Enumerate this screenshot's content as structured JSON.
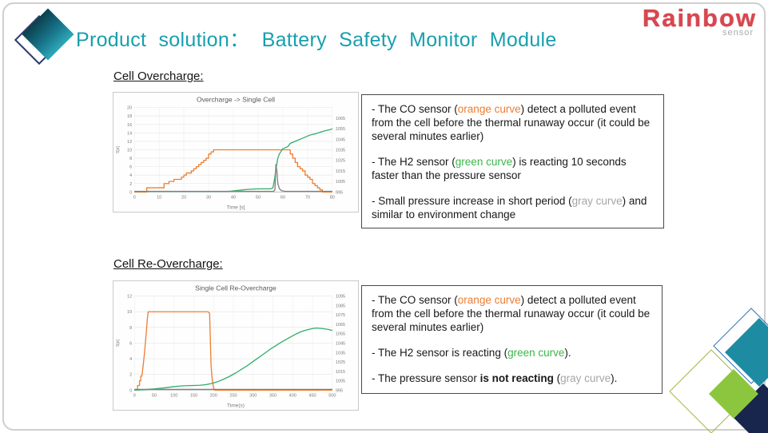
{
  "header": {
    "title": "Product solution： Battery Safety Monitor Module",
    "brand_name": "Rainbow",
    "brand_sub": "sensor"
  },
  "colors": {
    "orange": "#ED7D31",
    "green": "#3CB54A",
    "gray": "#A6A6A6",
    "accent_teal": "#189FAE",
    "brand_red": "#D9464F",
    "curve_green": "#2FAE68",
    "curve_gray": "#7F7F7F",
    "decor_teal": "#1D8CA3",
    "decor_lime": "#8CC63E",
    "decor_navy": "#18254D"
  },
  "sections": [
    {
      "heading": "Cell Overcharge: ",
      "notes": [
        [
          {
            "t": "- The CO sensor ("
          },
          {
            "t": "orange curve",
            "c": "orange"
          },
          {
            "t": ") detect a polluted event from the cell before the thermal runaway occur (it could be several minutes earlier)"
          }
        ],
        [
          {
            "t": "- The H2 sensor ("
          },
          {
            "t": "green curve",
            "c": "green"
          },
          {
            "t": ") is reacting 10 seconds faster than the pressure sensor"
          }
        ],
        [
          {
            "t": "- Small pressure increase in short period ("
          },
          {
            "t": "gray curve",
            "c": "gray"
          },
          {
            "t": ") and similar to environment change"
          }
        ]
      ]
    },
    {
      "heading": "Cell Re-Overcharge: ",
      "notes": [
        [
          {
            "t": "- The CO sensor ("
          },
          {
            "t": "orange curve",
            "c": "orange"
          },
          {
            "t": ") detect a polluted event from the cell before the thermal runaway occur (it could be several minutes earlier)"
          }
        ],
        [
          {
            "t": "- The H2 sensor is reacting ("
          },
          {
            "t": "green curve",
            "c": "green"
          },
          {
            "t": ")."
          }
        ],
        [
          {
            "t": "- The pressure sensor "
          },
          {
            "t": "is not reacting",
            "b": true
          },
          {
            "t": " ("
          },
          {
            "t": "gray curve",
            "c": "gray"
          },
          {
            "t": ")."
          }
        ]
      ]
    }
  ],
  "chart_data": [
    {
      "type": "line",
      "title": "Overcharge -> Single Cell",
      "xlabel": "Time [s]",
      "ylabel": "S[e]",
      "xlim": [
        0,
        80
      ],
      "xticks": [
        0,
        10,
        20,
        30,
        40,
        50,
        60,
        70,
        80
      ],
      "left": {
        "lim": [
          0,
          20
        ],
        "ticks": [
          0,
          2,
          4,
          6,
          8,
          10,
          12,
          14,
          16,
          18,
          20
        ]
      },
      "right": {
        "lim": [
          995,
          1075
        ],
        "ticks": [
          995,
          1005,
          1015,
          1025,
          1035,
          1045,
          1055,
          1065
        ]
      },
      "grid": true,
      "legend": "none",
      "series": [
        {
          "name": "CO sensor",
          "color": "#ED7D31",
          "axis": "left",
          "points": [
            [
              0,
              0
            ],
            [
              5,
              0
            ],
            [
              5,
              1
            ],
            [
              12,
              1
            ],
            [
              12,
              2
            ],
            [
              14,
              2
            ],
            [
              14,
              2.5
            ],
            [
              16,
              2.5
            ],
            [
              16,
              3
            ],
            [
              19,
              3
            ],
            [
              19,
              3.5
            ],
            [
              20,
              3.5
            ],
            [
              20,
              4
            ],
            [
              21,
              4
            ],
            [
              21,
              4.5
            ],
            [
              23,
              4.5
            ],
            [
              23,
              5
            ],
            [
              24,
              5
            ],
            [
              24,
              5.5
            ],
            [
              25,
              5.5
            ],
            [
              25,
              6
            ],
            [
              26,
              6
            ],
            [
              26,
              6.5
            ],
            [
              27,
              6.5
            ],
            [
              27,
              7
            ],
            [
              28,
              7
            ],
            [
              28,
              7.5
            ],
            [
              29,
              7.5
            ],
            [
              29,
              8
            ],
            [
              30,
              8
            ],
            [
              30,
              9
            ],
            [
              31,
              9
            ],
            [
              31,
              9.5
            ],
            [
              32,
              9.5
            ],
            [
              32,
              10
            ],
            [
              63,
              10
            ],
            [
              63,
              9
            ],
            [
              64,
              9
            ],
            [
              64,
              8
            ],
            [
              65,
              8
            ],
            [
              65,
              7
            ],
            [
              66,
              7
            ],
            [
              66,
              6
            ],
            [
              67,
              6
            ],
            [
              67,
              5.5
            ],
            [
              68,
              5.5
            ],
            [
              68,
              5
            ],
            [
              69,
              5
            ],
            [
              69,
              4
            ],
            [
              70,
              4
            ],
            [
              70,
              3.5
            ],
            [
              71,
              3.5
            ],
            [
              71,
              3
            ],
            [
              72,
              3
            ],
            [
              72,
              2
            ],
            [
              73,
              2
            ],
            [
              73,
              1.5
            ],
            [
              74,
              1.5
            ],
            [
              74,
              1
            ],
            [
              75,
              1
            ],
            [
              75,
              0.5
            ],
            [
              76,
              0.5
            ],
            [
              76,
              0
            ],
            [
              80,
              0
            ]
          ]
        },
        {
          "name": "H2 sensor",
          "color": "#2FAE68",
          "axis": "right",
          "points": [
            [
              0,
              995.5
            ],
            [
              38,
              995.5
            ],
            [
              42,
              996.5
            ],
            [
              46,
              997.5
            ],
            [
              50,
              998
            ],
            [
              55,
              998
            ],
            [
              56,
              999
            ],
            [
              56.7,
              1008
            ],
            [
              57.3,
              1018
            ],
            [
              58,
              1027
            ],
            [
              58.6,
              1031
            ],
            [
              59.4,
              1034
            ],
            [
              60,
              1036
            ],
            [
              62,
              1038
            ],
            [
              63,
              1041
            ],
            [
              65,
              1043
            ],
            [
              67,
              1045
            ],
            [
              69,
              1047
            ],
            [
              71,
              1049
            ],
            [
              73,
              1050
            ],
            [
              75,
              1051.5
            ],
            [
              77,
              1053
            ],
            [
              79,
              1054
            ],
            [
              80,
              1055
            ]
          ]
        },
        {
          "name": "Pressure sensor",
          "color": "#7F7F7F",
          "axis": "left",
          "points": [
            [
              0,
              0.15
            ],
            [
              56.3,
              0.15
            ],
            [
              56.8,
              0.5
            ],
            [
              57.2,
              6.5
            ],
            [
              57.6,
              5
            ],
            [
              58,
              2
            ],
            [
              58.6,
              0.8
            ],
            [
              59.5,
              0.3
            ],
            [
              61,
              0.15
            ],
            [
              80,
              0.15
            ]
          ]
        }
      ]
    },
    {
      "type": "line",
      "title": "Single Cell Re-Overcharge",
      "xlabel": "Time(s)",
      "ylabel": "S[e]",
      "xlim": [
        0,
        500
      ],
      "xticks": [
        0,
        50,
        100,
        150,
        200,
        250,
        300,
        350,
        400,
        450,
        500
      ],
      "left": {
        "lim": [
          0,
          12
        ],
        "ticks": [
          0,
          2,
          4,
          6,
          8,
          10,
          12
        ]
      },
      "right": {
        "lim": [
          995,
          1095
        ],
        "ticks": [
          995,
          1005,
          1015,
          1025,
          1035,
          1045,
          1055,
          1065,
          1075,
          1085,
          1095
        ]
      },
      "grid": true,
      "legend": "none",
      "series": [
        {
          "name": "CO sensor",
          "color": "#ED7D31",
          "axis": "left",
          "points": [
            [
              0,
              0
            ],
            [
              8,
              0
            ],
            [
              8,
              0.6
            ],
            [
              13,
              0.6
            ],
            [
              13,
              1.2
            ],
            [
              16,
              1.2
            ],
            [
              16,
              1.8
            ],
            [
              19,
              1.8
            ],
            [
              20,
              2.2
            ],
            [
              23,
              3.5
            ],
            [
              26,
              5
            ],
            [
              29,
              6.8
            ],
            [
              31,
              8
            ],
            [
              33,
              9.2
            ],
            [
              35,
              10
            ],
            [
              186,
              10
            ],
            [
              190,
              9.8
            ],
            [
              192,
              6
            ],
            [
              194,
              3
            ],
            [
              197,
              1.2
            ],
            [
              200,
              0.3
            ],
            [
              203,
              0
            ],
            [
              500,
              0
            ]
          ]
        },
        {
          "name": "H2 sensor",
          "color": "#2FAE68",
          "axis": "right",
          "points": [
            [
              0,
              995
            ],
            [
              25,
              995.6
            ],
            [
              50,
              996.4
            ],
            [
              75,
              997.4
            ],
            [
              100,
              998.8
            ],
            [
              115,
              999.4
            ],
            [
              130,
              999.8
            ],
            [
              150,
              1000
            ],
            [
              165,
              1000.2
            ],
            [
              180,
              1000.8
            ],
            [
              195,
              1002
            ],
            [
              210,
              1004
            ],
            [
              225,
              1006.5
            ],
            [
              240,
              1009.5
            ],
            [
              255,
              1013
            ],
            [
              270,
              1017
            ],
            [
              285,
              1021
            ],
            [
              300,
              1025.5
            ],
            [
              315,
              1030
            ],
            [
              330,
              1034.5
            ],
            [
              345,
              1039
            ],
            [
              360,
              1043
            ],
            [
              375,
              1047
            ],
            [
              390,
              1050.5
            ],
            [
              405,
              1054
            ],
            [
              420,
              1057
            ],
            [
              435,
              1059
            ],
            [
              450,
              1060.5
            ],
            [
              460,
              1061
            ],
            [
              475,
              1060.5
            ],
            [
              490,
              1059.5
            ],
            [
              500,
              1058.5
            ]
          ]
        },
        {
          "name": "Pressure sensor",
          "color": "#7F7F7F",
          "axis": "left",
          "points": [
            [
              0,
              0.1
            ],
            [
              500,
              0.1
            ]
          ]
        }
      ]
    }
  ]
}
